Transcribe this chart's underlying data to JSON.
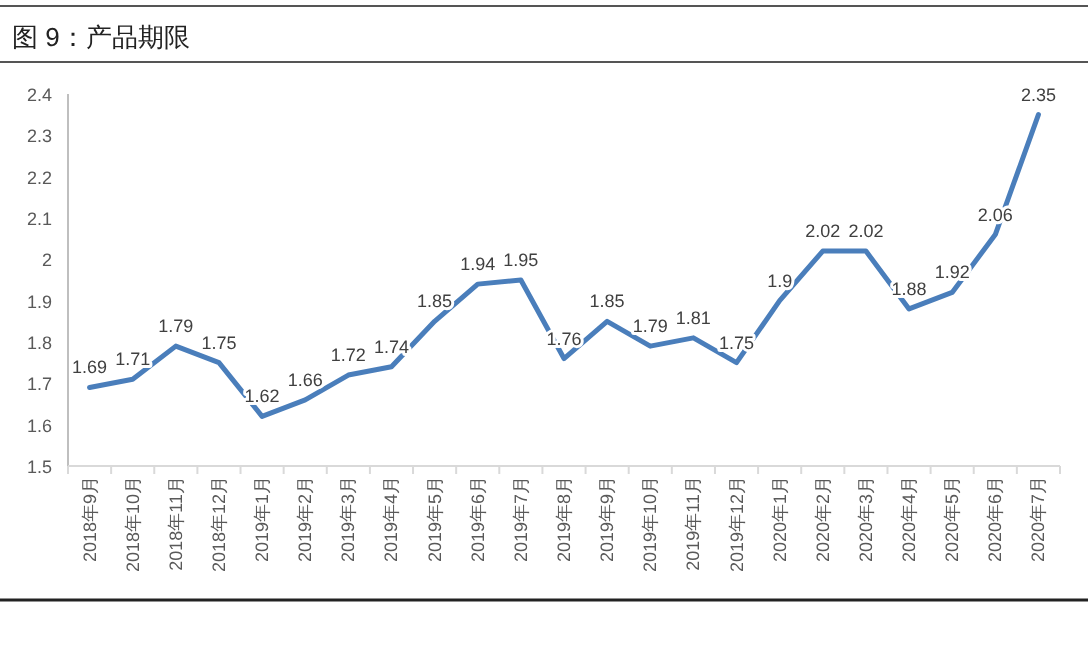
{
  "chart_data": {
    "type": "line",
    "title": "图 9：产品期限",
    "categories": [
      "2018年9月",
      "2018年10月",
      "2018年11月",
      "2018年12月",
      "2019年1月",
      "2019年2月",
      "2019年3月",
      "2019年4月",
      "2019年5月",
      "2019年6月",
      "2019年7月",
      "2019年8月",
      "2019年9月",
      "2019年10月",
      "2019年11月",
      "2019年12月",
      "2020年1月",
      "2020年2月",
      "2020年3月",
      "2020年4月",
      "2020年5月",
      "2020年6月",
      "2020年7月"
    ],
    "series": [
      {
        "color": "#4a7ebb",
        "values": [
          1.69,
          1.71,
          1.79,
          1.75,
          1.62,
          1.66,
          1.72,
          1.74,
          1.85,
          1.94,
          1.95,
          1.76,
          1.85,
          1.79,
          1.81,
          1.75,
          1.9,
          2.02,
          2.02,
          1.88,
          1.92,
          2.06,
          2.35
        ]
      }
    ],
    "ylim": [
      1.5,
      2.4
    ],
    "yticks": [
      1.5,
      1.6,
      1.7,
      1.8,
      1.9,
      2,
      2.1,
      2.2,
      2.3,
      2.4
    ],
    "data_labels": true,
    "grid": false,
    "marker": "none",
    "line_style": "solid"
  }
}
